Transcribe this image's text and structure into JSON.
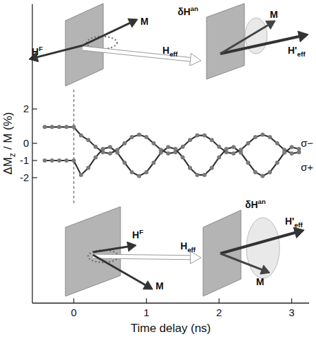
{
  "chart_data": {
    "type": "line",
    "x_label": "Time delay (ns)",
    "y_label": {
      "base": "ΔM",
      "sub": "z",
      "tail": " / M (%)"
    },
    "x": [
      -0.4,
      -0.3,
      -0.2,
      -0.1,
      0,
      0.1,
      0.2,
      0.3,
      0.4,
      0.5,
      0.6,
      0.7,
      0.8,
      0.9,
      1.0,
      1.1,
      1.2,
      1.3,
      1.4,
      1.5,
      1.6,
      1.7,
      1.8,
      1.9,
      2.0,
      2.1,
      2.2,
      2.3,
      2.4,
      2.5,
      2.6,
      2.7,
      2.8,
      2.9,
      3.0,
      3.1
    ],
    "series": [
      {
        "name": "σ−",
        "color": "#333333",
        "marker": "circle",
        "line_style": "solid",
        "values": [
          0.95,
          0.95,
          0.95,
          0.95,
          0.95,
          0.46,
          0.19,
          -0.2,
          -0.52,
          -0.59,
          -0.38,
          0,
          0.36,
          0.5,
          0.36,
          0,
          -0.38,
          -0.59,
          -0.52,
          -0.2,
          0.19,
          0.46,
          0.46,
          0.19,
          -0.2,
          -0.52,
          -0.59,
          -0.38,
          0,
          0.36,
          0.5,
          0.36,
          0,
          -0.38,
          -0.59,
          -0.52
        ]
      },
      {
        "name": "σ+",
        "color": "#333333",
        "marker": "circle",
        "line_style": "solid",
        "values": [
          -1,
          -1,
          -1,
          -1,
          -1,
          -1.84,
          -1.43,
          -0.82,
          -0.33,
          -0.22,
          -0.54,
          -1.13,
          -1.68,
          -1.9,
          -1.68,
          -1.13,
          -0.54,
          -0.22,
          -0.33,
          -0.82,
          -1.43,
          -1.84,
          -1.84,
          -1.43,
          -0.82,
          -0.33,
          -0.22,
          -0.54,
          -1.13,
          -1.68,
          -1.9,
          -1.68,
          -1.13,
          -0.54,
          -0.22,
          -0.33
        ]
      }
    ],
    "xlim": [
      -0.57,
      3.24
    ],
    "xticks": [
      0,
      1,
      2,
      3
    ],
    "ylim": [
      -9.3,
      8.1
    ],
    "yticks": [
      2,
      0,
      -2,
      -1
    ],
    "grid": false,
    "insets": [
      {
        "labels": [
          {
            "base": "H",
            "sup": "F"
          },
          {
            "base": "M"
          },
          {
            "base": "H",
            "sub": "eff"
          }
        ]
      },
      {
        "labels": [
          {
            "base": "δH",
            "sup": "an"
          },
          {
            "base": "M"
          },
          {
            "base": "H'",
            "sub": "eff"
          }
        ]
      },
      {
        "labels": [
          {
            "base": "H",
            "sup": "F"
          },
          {
            "base": "H",
            "sub": "eff"
          },
          {
            "base": "M"
          }
        ]
      },
      {
        "labels": [
          {
            "base": "δH",
            "sup": "an"
          },
          {
            "base": "H'",
            "sub": "eff"
          },
          {
            "base": "M"
          }
        ]
      }
    ]
  }
}
